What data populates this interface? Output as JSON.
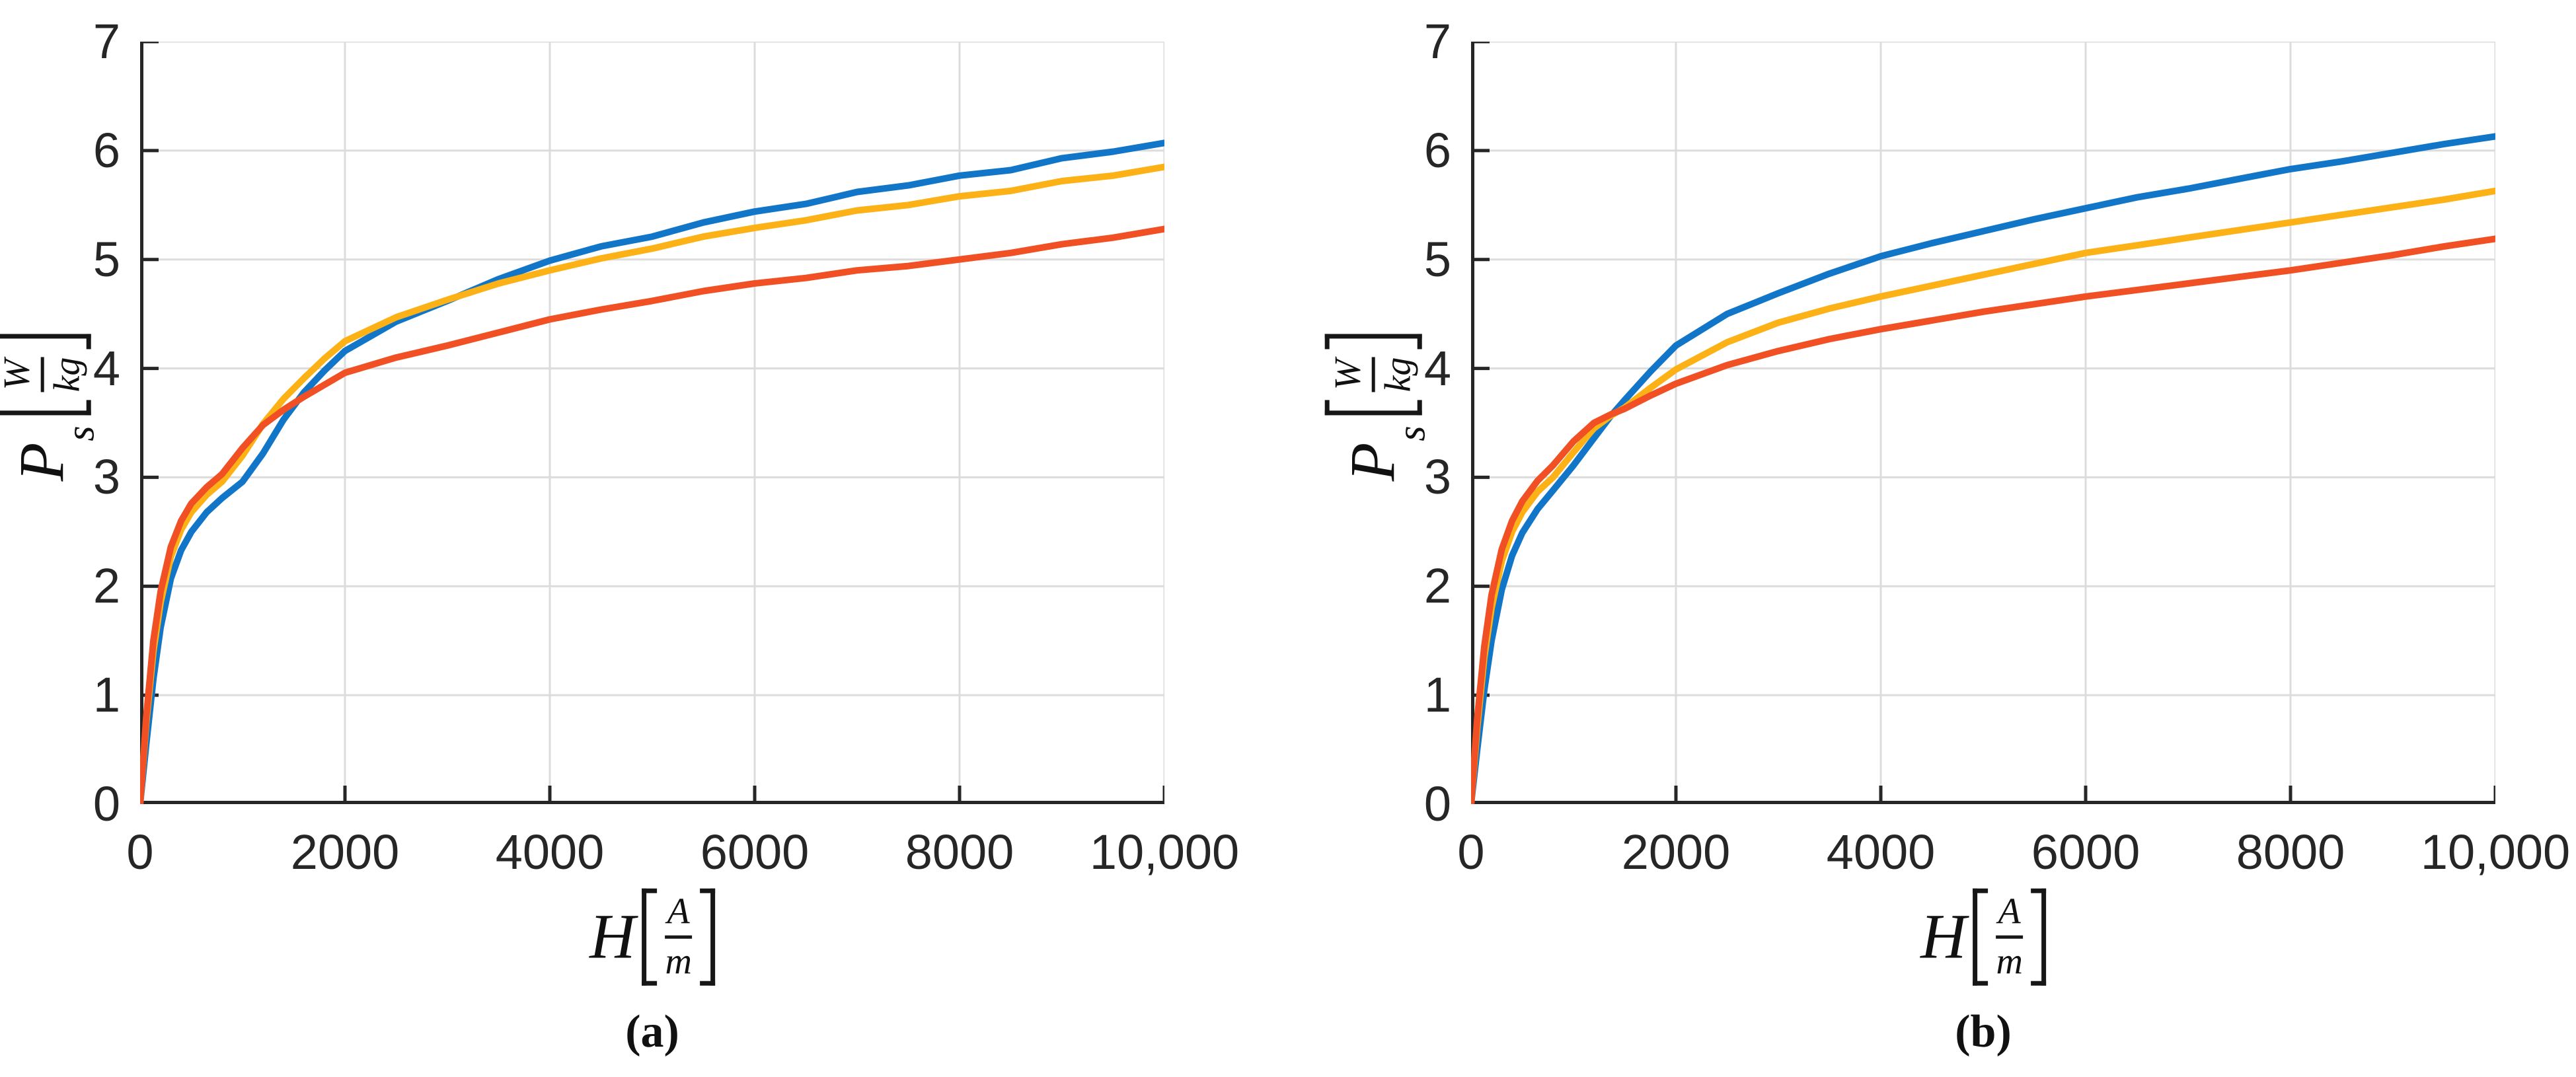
{
  "figure": {
    "background": "#ffffff",
    "text_color": "#262626",
    "axis_color": "#262626",
    "grid_color": "#dcdcdc",
    "series_colors": {
      "blue": "#1276c8",
      "yellow": "#fcb116",
      "orange": "#f05023"
    },
    "captions": [
      "(a)",
      "(b)"
    ]
  },
  "chart_data": [
    {
      "type": "line",
      "panel": "a",
      "caption": "(a)",
      "title": "",
      "xlabel": "H [A/m]",
      "ylabel": "P_s [W/kg]",
      "xlabel_parts": {
        "var": "H",
        "unit_numerator": "A",
        "unit_denominator": "m"
      },
      "ylabel_parts": {
        "var": "P",
        "sub": "s",
        "unit_numerator": "W",
        "unit_denominator": "kg"
      },
      "xlim": [
        0,
        10000
      ],
      "ylim": [
        0,
        7
      ],
      "x_ticks": [
        0,
        2000,
        4000,
        6000,
        8000,
        10000
      ],
      "x_tick_labels": [
        "0",
        "2000",
        "4000",
        "6000",
        "8000",
        "10,000"
      ],
      "y_ticks": [
        0,
        1,
        2,
        3,
        4,
        5,
        6,
        7
      ],
      "y_tick_labels": [
        "0",
        "1",
        "2",
        "3",
        "4",
        "5",
        "6",
        "7"
      ],
      "grid": true,
      "legend": "none",
      "series": [
        {
          "name": "blue",
          "color_key": "blue",
          "points": [
            [
              0,
              0
            ],
            [
              60,
              0.55
            ],
            [
              130,
              1.15
            ],
            [
              200,
              1.62
            ],
            [
              300,
              2.07
            ],
            [
              400,
              2.33
            ],
            [
              500,
              2.5
            ],
            [
              650,
              2.68
            ],
            [
              800,
              2.81
            ],
            [
              1000,
              2.96
            ],
            [
              1200,
              3.22
            ],
            [
              1400,
              3.53
            ],
            [
              1600,
              3.78
            ],
            [
              1800,
              3.98
            ],
            [
              2000,
              4.16
            ],
            [
              2500,
              4.43
            ],
            [
              3000,
              4.62
            ],
            [
              3500,
              4.82
            ],
            [
              4000,
              4.99
            ],
            [
              4500,
              5.12
            ],
            [
              5000,
              5.21
            ],
            [
              5500,
              5.34
            ],
            [
              6000,
              5.44
            ],
            [
              6500,
              5.51
            ],
            [
              7000,
              5.62
            ],
            [
              7500,
              5.68
            ],
            [
              8000,
              5.77
            ],
            [
              8500,
              5.82
            ],
            [
              9000,
              5.93
            ],
            [
              9500,
              5.99
            ],
            [
              10000,
              6.07
            ]
          ]
        },
        {
          "name": "yellow",
          "color_key": "yellow",
          "points": [
            [
              0,
              0
            ],
            [
              60,
              0.75
            ],
            [
              130,
              1.4
            ],
            [
              200,
              1.85
            ],
            [
              300,
              2.27
            ],
            [
              400,
              2.52
            ],
            [
              500,
              2.68
            ],
            [
              650,
              2.84
            ],
            [
              800,
              2.96
            ],
            [
              1000,
              3.2
            ],
            [
              1200,
              3.49
            ],
            [
              1400,
              3.72
            ],
            [
              1600,
              3.91
            ],
            [
              1800,
              4.09
            ],
            [
              2000,
              4.25
            ],
            [
              2500,
              4.47
            ],
            [
              3000,
              4.63
            ],
            [
              3500,
              4.78
            ],
            [
              4000,
              4.9
            ],
            [
              4500,
              5.01
            ],
            [
              5000,
              5.1
            ],
            [
              5500,
              5.21
            ],
            [
              6000,
              5.29
            ],
            [
              6500,
              5.36
            ],
            [
              7000,
              5.45
            ],
            [
              7500,
              5.5
            ],
            [
              8000,
              5.58
            ],
            [
              8500,
              5.63
            ],
            [
              9000,
              5.72
            ],
            [
              9500,
              5.77
            ],
            [
              10000,
              5.85
            ]
          ]
        },
        {
          "name": "orange",
          "color_key": "orange",
          "points": [
            [
              0,
              0
            ],
            [
              60,
              0.8
            ],
            [
              130,
              1.5
            ],
            [
              200,
              1.95
            ],
            [
              300,
              2.36
            ],
            [
              400,
              2.6
            ],
            [
              500,
              2.76
            ],
            [
              650,
              2.91
            ],
            [
              800,
              3.03
            ],
            [
              1000,
              3.27
            ],
            [
              1200,
              3.48
            ],
            [
              1400,
              3.62
            ],
            [
              1600,
              3.74
            ],
            [
              1800,
              3.85
            ],
            [
              2000,
              3.96
            ],
            [
              2500,
              4.1
            ],
            [
              3000,
              4.21
            ],
            [
              3500,
              4.33
            ],
            [
              4000,
              4.45
            ],
            [
              4500,
              4.54
            ],
            [
              5000,
              4.62
            ],
            [
              5500,
              4.71
            ],
            [
              6000,
              4.78
            ],
            [
              6500,
              4.83
            ],
            [
              7000,
              4.9
            ],
            [
              7500,
              4.94
            ],
            [
              8000,
              5.0
            ],
            [
              8500,
              5.06
            ],
            [
              9000,
              5.14
            ],
            [
              9500,
              5.2
            ],
            [
              10000,
              5.28
            ]
          ]
        }
      ]
    },
    {
      "type": "line",
      "panel": "b",
      "caption": "(b)",
      "title": "",
      "xlabel": "H [A/m]",
      "ylabel": "P_s [W/kg]",
      "xlabel_parts": {
        "var": "H",
        "unit_numerator": "A",
        "unit_denominator": "m"
      },
      "ylabel_parts": {
        "var": "P",
        "sub": "s",
        "unit_numerator": "W",
        "unit_denominator": "kg"
      },
      "xlim": [
        0,
        10000
      ],
      "ylim": [
        0,
        7
      ],
      "x_ticks": [
        0,
        2000,
        4000,
        6000,
        8000,
        10000
      ],
      "x_tick_labels": [
        "0",
        "2000",
        "4000",
        "6000",
        "8000",
        "10,000"
      ],
      "y_ticks": [
        0,
        1,
        2,
        3,
        4,
        5,
        6,
        7
      ],
      "y_tick_labels": [
        "0",
        "1",
        "2",
        "3",
        "4",
        "5",
        "6",
        "7"
      ],
      "grid": true,
      "legend": "none",
      "series": [
        {
          "name": "blue",
          "color_key": "blue",
          "points": [
            [
              0,
              0
            ],
            [
              60,
              0.5
            ],
            [
              130,
              1.05
            ],
            [
              200,
              1.5
            ],
            [
              300,
              1.97
            ],
            [
              400,
              2.28
            ],
            [
              500,
              2.49
            ],
            [
              650,
              2.71
            ],
            [
              800,
              2.88
            ],
            [
              1000,
              3.11
            ],
            [
              1200,
              3.36
            ],
            [
              1370,
              3.57
            ],
            [
              1500,
              3.71
            ],
            [
              1750,
              3.97
            ],
            [
              2000,
              4.21
            ],
            [
              2500,
              4.5
            ],
            [
              3000,
              4.69
            ],
            [
              3500,
              4.87
            ],
            [
              4000,
              5.03
            ],
            [
              4500,
              5.15
            ],
            [
              5000,
              5.26
            ],
            [
              5500,
              5.37
            ],
            [
              6000,
              5.47
            ],
            [
              6500,
              5.57
            ],
            [
              7000,
              5.65
            ],
            [
              7500,
              5.74
            ],
            [
              8000,
              5.83
            ],
            [
              8500,
              5.9
            ],
            [
              9000,
              5.98
            ],
            [
              9500,
              6.06
            ],
            [
              10000,
              6.13
            ]
          ]
        },
        {
          "name": "yellow",
          "color_key": "yellow",
          "points": [
            [
              0,
              0
            ],
            [
              60,
              0.7
            ],
            [
              130,
              1.35
            ],
            [
              200,
              1.8
            ],
            [
              300,
              2.23
            ],
            [
              400,
              2.5
            ],
            [
              500,
              2.68
            ],
            [
              650,
              2.87
            ],
            [
              800,
              3.0
            ],
            [
              1000,
              3.23
            ],
            [
              1200,
              3.45
            ],
            [
              1370,
              3.57
            ],
            [
              1500,
              3.64
            ],
            [
              1750,
              3.82
            ],
            [
              2000,
              3.99
            ],
            [
              2500,
              4.24
            ],
            [
              3000,
              4.42
            ],
            [
              3500,
              4.55
            ],
            [
              4000,
              4.66
            ],
            [
              4500,
              4.76
            ],
            [
              5000,
              4.86
            ],
            [
              5500,
              4.96
            ],
            [
              6000,
              5.06
            ],
            [
              6500,
              5.13
            ],
            [
              7000,
              5.2
            ],
            [
              7500,
              5.27
            ],
            [
              8000,
              5.34
            ],
            [
              8500,
              5.41
            ],
            [
              9000,
              5.48
            ],
            [
              9500,
              5.55
            ],
            [
              10000,
              5.63
            ]
          ]
        },
        {
          "name": "orange",
          "color_key": "orange",
          "points": [
            [
              0,
              0
            ],
            [
              60,
              0.78
            ],
            [
              130,
              1.45
            ],
            [
              200,
              1.92
            ],
            [
              300,
              2.34
            ],
            [
              400,
              2.6
            ],
            [
              500,
              2.78
            ],
            [
              650,
              2.97
            ],
            [
              800,
              3.11
            ],
            [
              1000,
              3.33
            ],
            [
              1200,
              3.5
            ],
            [
              1370,
              3.58
            ],
            [
              1500,
              3.63
            ],
            [
              1750,
              3.75
            ],
            [
              2000,
              3.86
            ],
            [
              2500,
              4.03
            ],
            [
              3000,
              4.16
            ],
            [
              3500,
              4.27
            ],
            [
              4000,
              4.36
            ],
            [
              4500,
              4.44
            ],
            [
              5000,
              4.52
            ],
            [
              5500,
              4.59
            ],
            [
              6000,
              4.66
            ],
            [
              6500,
              4.72
            ],
            [
              7000,
              4.78
            ],
            [
              7500,
              4.84
            ],
            [
              8000,
              4.9
            ],
            [
              8500,
              4.97
            ],
            [
              9000,
              5.04
            ],
            [
              9500,
              5.12
            ],
            [
              10000,
              5.19
            ]
          ]
        }
      ]
    }
  ]
}
